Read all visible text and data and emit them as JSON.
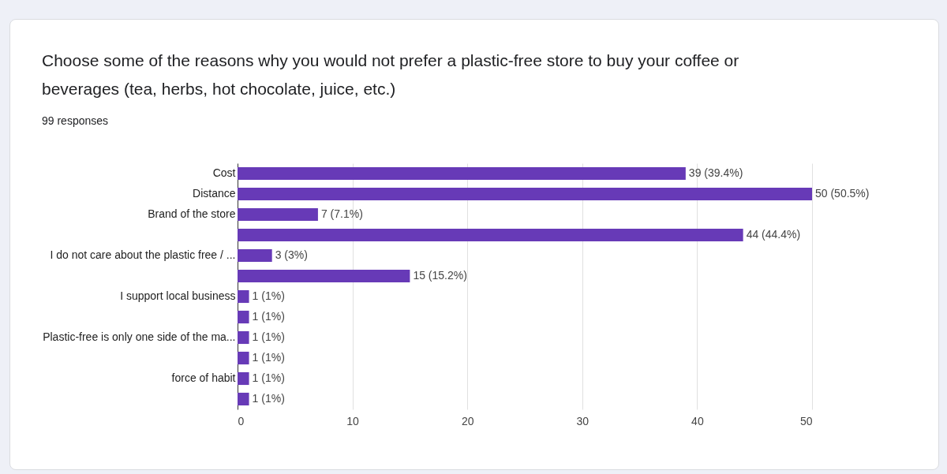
{
  "chart_data": {
    "type": "bar",
    "orientation": "horizontal",
    "title": "Choose some of the reasons why you would not prefer a plastic-free store to buy your coffee or beverages (tea, herbs, hot chocolate, juice, etc.)",
    "subtitle": "99 responses",
    "categories": [
      "Cost",
      "Distance",
      "Brand of the store",
      null,
      "I do not care about the plastic free / ...",
      null,
      "I support local business",
      null,
      "Plastic-free is only one side of the ma...",
      null,
      "force of habit",
      null
    ],
    "values": [
      39,
      50,
      7,
      44,
      3,
      15,
      1,
      1,
      1,
      1,
      1,
      1
    ],
    "value_labels": [
      "39 (39.4%)",
      "50 (50.5%)",
      "7 (7.1%)",
      "44 (44.4%)",
      "3 (3%)",
      "15 (15.2%)",
      "1 (1%)",
      "1 (1%)",
      "1 (1%)",
      "1 (1%)",
      "1 (1%)",
      "1 (1%)"
    ],
    "color": "#673ab7",
    "xlim": [
      0,
      50
    ],
    "xticks": [
      0,
      10,
      20,
      30,
      40,
      50
    ],
    "grid": "x"
  }
}
